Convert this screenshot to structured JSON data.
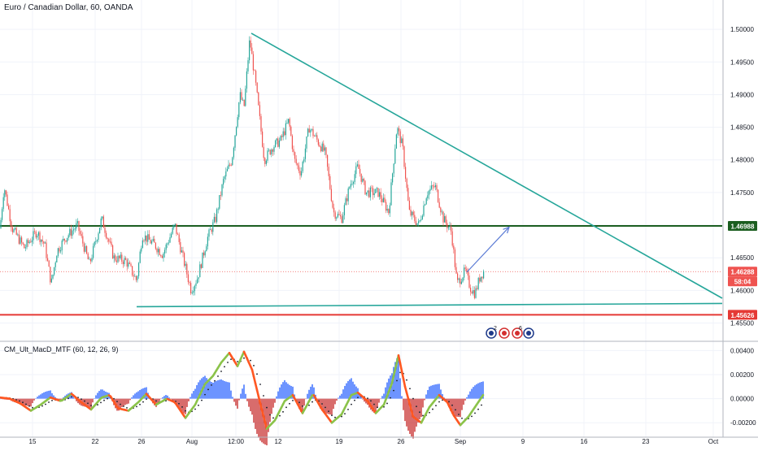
{
  "header": {
    "symbol_title": "Euro / Canadian Dollar, 60, OANDA"
  },
  "indicator": {
    "title": "CM_Ult_MacD_MTF (60, 12, 26, 9)"
  },
  "colors": {
    "candle_up": "#26a69a",
    "candle_down": "#ef5350",
    "trendline": "#26a69a",
    "resistance_line": "#1b5e20",
    "support_line": "#e53935",
    "current_price_line": "#ef5350",
    "arrow": "#5b7bd5",
    "macd_rising": "#8bc34a",
    "macd_falling": "#ff5722",
    "hist_up": "#2962ff",
    "hist_down": "#c62828",
    "grid": "#f0f3fa"
  },
  "chart_data": [
    {
      "type": "candlestick",
      "title": "Euro / Canadian Dollar, 60, OANDA",
      "x_ticks": [
        "15",
        "22",
        "26",
        "Aug",
        "12:00",
        "12",
        "19",
        "26",
        "Sep",
        "9",
        "16",
        "23",
        "Oct"
      ],
      "y_ticks": [
        "1.50000",
        "1.49500",
        "1.49000",
        "1.48500",
        "1.48000",
        "1.47500",
        "1.47000",
        "1.46500",
        "1.46000",
        "1.45500"
      ],
      "ylim": [
        1.4522,
        1.5045
      ],
      "price_labels": {
        "resistance": "1.46988",
        "current": "1.46288",
        "countdown": "58:04",
        "support": "1.45626"
      },
      "levels": {
        "resistance": 1.46988,
        "current": 1.46288,
        "support": 1.45626
      },
      "path": [
        [
          0,
          1.4695
        ],
        [
          5,
          1.476
        ],
        [
          15,
          1.4695
        ],
        [
          30,
          1.4665
        ],
        [
          45,
          1.469
        ],
        [
          55,
          1.467
        ],
        [
          63,
          1.461
        ],
        [
          70,
          1.466
        ],
        [
          80,
          1.468
        ],
        [
          95,
          1.47
        ],
        [
          110,
          1.464
        ],
        [
          125,
          1.471
        ],
        [
          140,
          1.465
        ],
        [
          155,
          1.4645
        ],
        [
          168,
          1.4615
        ],
        [
          175,
          1.4685
        ],
        [
          190,
          1.467
        ],
        [
          200,
          1.4655
        ],
        [
          215,
          1.47
        ],
        [
          225,
          1.465
        ],
        [
          235,
          1.46
        ],
        [
          243,
          1.462
        ],
        [
          255,
          1.468
        ],
        [
          265,
          1.471
        ],
        [
          275,
          1.477
        ],
        [
          285,
          1.48
        ],
        [
          295,
          1.49
        ],
        [
          300,
          1.488
        ],
        [
          307,
          1.4985
        ],
        [
          315,
          1.491
        ],
        [
          325,
          1.48
        ],
        [
          335,
          1.482
        ],
        [
          345,
          1.483
        ],
        [
          355,
          1.486
        ],
        [
          362,
          1.48
        ],
        [
          370,
          1.478
        ],
        [
          380,
          1.485
        ],
        [
          390,
          1.483
        ],
        [
          400,
          1.481
        ],
        [
          410,
          1.472
        ],
        [
          420,
          1.471
        ],
        [
          430,
          1.476
        ],
        [
          440,
          1.479
        ],
        [
          450,
          1.475
        ],
        [
          465,
          1.475
        ],
        [
          478,
          1.472
        ],
        [
          488,
          1.485
        ],
        [
          495,
          1.482
        ],
        [
          503,
          1.472
        ],
        [
          515,
          1.47
        ],
        [
          525,
          1.475
        ],
        [
          535,
          1.476
        ],
        [
          545,
          1.471
        ],
        [
          555,
          1.469
        ],
        [
          562,
          1.461
        ],
        [
          572,
          1.463
        ],
        [
          578,
          1.4605
        ],
        [
          584,
          1.4595
        ],
        [
          590,
          1.462
        ],
        [
          595,
          1.463
        ]
      ],
      "annotations": {
        "trendlines": [
          {
            "name": "descending-trendline",
            "from": [
              309,
              1.4994
            ],
            "to": [
              888,
              1.4588
            ]
          },
          {
            "name": "ascending-trendline",
            "from": [
              168,
              1.4575
            ],
            "to": [
              888,
              1.458
            ]
          }
        ],
        "arrow": {
          "from": [
            574,
            1.4628
          ],
          "to": [
            626,
            1.4697
          ]
        }
      },
      "event_icons": [
        "2",
        "6"
      ]
    },
    {
      "type": "line",
      "title": "CM_Ult_MacD_MTF (60, 12, 26, 9)",
      "y_ticks": [
        "0.00400",
        "0.00200",
        "0.00000",
        "-0.00200"
      ],
      "ylim": [
        -0.0032,
        0.0047
      ],
      "macd": [
        [
          0,
          0.0001
        ],
        [
          12,
          0.0
        ],
        [
          25,
          -0.0004
        ],
        [
          38,
          -0.001
        ],
        [
          50,
          -0.0005
        ],
        [
          62,
          0.0001
        ],
        [
          75,
          -0.0002
        ],
        [
          88,
          0.0004
        ],
        [
          100,
          -0.0003
        ],
        [
          112,
          -0.0009
        ],
        [
          125,
          0.0001
        ],
        [
          135,
          0.0003
        ],
        [
          145,
          -0.0008
        ],
        [
          158,
          -0.001
        ],
        [
          170,
          -0.0003
        ],
        [
          180,
          0.0004
        ],
        [
          192,
          -0.0005
        ],
        [
          205,
          0.0
        ],
        [
          215,
          -0.0003
        ],
        [
          228,
          -0.0016
        ],
        [
          240,
          -0.0005
        ],
        [
          252,
          0.0012
        ],
        [
          262,
          0.0019
        ],
        [
          272,
          0.003
        ],
        [
          282,
          0.0038
        ],
        [
          292,
          0.0027
        ],
        [
          300,
          0.0039
        ],
        [
          310,
          0.0024
        ],
        [
          320,
          -0.0004
        ],
        [
          328,
          -0.0025
        ],
        [
          338,
          -0.0018
        ],
        [
          350,
          -0.0002
        ],
        [
          360,
          0.0003
        ],
        [
          372,
          -0.0012
        ],
        [
          385,
          0.0004
        ],
        [
          395,
          -0.0008
        ],
        [
          408,
          -0.002
        ],
        [
          420,
          -0.0013
        ],
        [
          432,
          0.0003
        ],
        [
          440,
          0.0005
        ],
        [
          452,
          -0.0002
        ],
        [
          462,
          -0.0012
        ],
        [
          472,
          -0.0005
        ],
        [
          482,
          0.0013
        ],
        [
          490,
          0.0036
        ],
        [
          498,
          0.001
        ],
        [
          508,
          -0.0015
        ],
        [
          518,
          -0.002
        ],
        [
          528,
          -0.0007
        ],
        [
          540,
          0.0003
        ],
        [
          550,
          -0.0003
        ],
        [
          558,
          -0.0014
        ],
        [
          566,
          -0.0022
        ],
        [
          576,
          -0.0015
        ],
        [
          585,
          -0.0006
        ],
        [
          595,
          0.0004
        ]
      ]
    }
  ]
}
